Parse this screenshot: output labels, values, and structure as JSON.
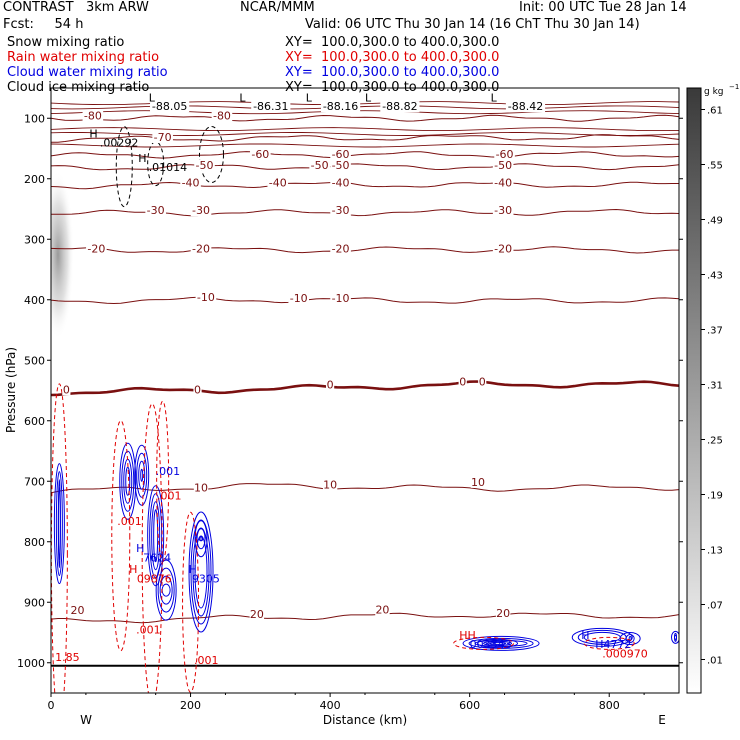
{
  "header": {
    "model": "CONTRAST   3km ARW",
    "center": "NCAR/MMM",
    "init": "Init: 00 UTC Tue 28 Jan 14",
    "fcst": "Fcst:     54 h",
    "valid": "Valid: 06 UTC Thu 30 Jan 14 (16 ChT Thu 30 Jan 14)"
  },
  "fields": [
    {
      "name": "Snow mixing ratio",
      "xsec": "XY=  100.0,300.0 to 400.0,300.0",
      "color": "#000000"
    },
    {
      "name": "Rain water mixing ratio",
      "xsec": "XY=  100.0,300.0 to 400.0,300.0",
      "color": "#e00000"
    },
    {
      "name": "Cloud water mixing ratio",
      "xsec": "XY=  100.0,300.0 to 400.0,300.0",
      "color": "#0000e0"
    },
    {
      "name": "Cloud ice mixing ratio",
      "xsec": "XY=  100.0,300.0 to 400.0,300.0",
      "color": "#000000"
    }
  ],
  "colors": {
    "temperature": "#7a1010",
    "rain": "#e00000",
    "cloud_water": "#0000e0",
    "terrain": "#000000"
  },
  "chart_data": {
    "type": "contour",
    "xlabel": "Distance (km)",
    "ylabel": "Pressure (hPa)",
    "xlim": [
      0,
      900
    ],
    "ylim": [
      1050,
      50
    ],
    "x_ticks": [
      0,
      200,
      400,
      600,
      800
    ],
    "y_ticks": [
      100,
      200,
      300,
      400,
      500,
      600,
      700,
      800,
      900,
      1000
    ],
    "direction_labels": [
      "W",
      "E"
    ],
    "colorbar": {
      "unit": "g kg",
      "unit_exp": "−1",
      "ticks": [
        ".01",
        ".07",
        ".13",
        ".19",
        ".25",
        ".31",
        ".37",
        ".43",
        ".49",
        ".55",
        ".61"
      ]
    },
    "temperature_contours": [
      {
        "label": "-80",
        "pressure": [
          100,
          100,
          100,
          100
        ]
      },
      {
        "label": "-70",
        "pressure": [
          135,
          133,
          132,
          131
        ]
      },
      {
        "label": "-60",
        "pressure": [
          162,
          160,
          160,
          160
        ]
      },
      {
        "label": "-50",
        "pressure": [
          182,
          180,
          180,
          180
        ]
      },
      {
        "label": "-40",
        "pressure": [
          212,
          210,
          210,
          210
        ]
      },
      {
        "label": "-30",
        "pressure": [
          257,
          256,
          256,
          255
        ]
      },
      {
        "label": "-20",
        "pressure": [
          318,
          318,
          317,
          318
        ]
      },
      {
        "label": "-10",
        "pressure": [
          402,
          400,
          402,
          401
        ]
      },
      {
        "label": "0",
        "pressure": [
          553,
          548,
          540,
          540
        ]
      },
      {
        "label": "10",
        "pressure": [
          717,
          707,
          712,
          710
        ]
      },
      {
        "label": "20",
        "pressure": [
          932,
          925,
          921,
          923
        ]
      }
    ],
    "contour_labels": [
      {
        "text": "-88.05",
        "x": 170,
        "p": 85
      },
      {
        "text": "-86.31",
        "x": 315,
        "p": 85
      },
      {
        "text": "-88.16",
        "x": 415,
        "p": 85
      },
      {
        "text": "-88.82",
        "x": 500,
        "p": 85
      },
      {
        "text": "-88.42",
        "x": 680,
        "p": 85
      },
      {
        "text": "-80",
        "x": 60,
        "p": 100
      },
      {
        "text": "-80",
        "x": 245,
        "p": 100
      },
      {
        "text": "-70",
        "x": 160,
        "p": 136
      },
      {
        "text": "-60",
        "x": 300,
        "p": 164
      },
      {
        "text": "-60",
        "x": 415,
        "p": 164
      },
      {
        "text": "-60",
        "x": 650,
        "p": 164
      },
      {
        "text": "-50",
        "x": 220,
        "p": 182
      },
      {
        "text": "-50",
        "x": 385,
        "p": 182
      },
      {
        "text": "-50",
        "x": 415,
        "p": 182
      },
      {
        "text": "-50",
        "x": 648,
        "p": 182
      },
      {
        "text": "-40",
        "x": 200,
        "p": 211
      },
      {
        "text": "-40",
        "x": 325,
        "p": 211
      },
      {
        "text": "-40",
        "x": 415,
        "p": 211
      },
      {
        "text": "-40",
        "x": 648,
        "p": 211
      },
      {
        "text": "-30",
        "x": 150,
        "p": 257
      },
      {
        "text": "-30",
        "x": 215,
        "p": 257
      },
      {
        "text": "-30",
        "x": 415,
        "p": 257
      },
      {
        "text": "-30",
        "x": 648,
        "p": 257
      },
      {
        "text": "-20",
        "x": 65,
        "p": 320
      },
      {
        "text": "-20",
        "x": 215,
        "p": 320
      },
      {
        "text": "-20",
        "x": 415,
        "p": 320
      },
      {
        "text": "-20",
        "x": 648,
        "p": 320
      },
      {
        "text": "-10",
        "x": 222,
        "p": 400
      },
      {
        "text": "-10",
        "x": 355,
        "p": 402
      },
      {
        "text": "-10",
        "x": 415,
        "p": 402
      },
      {
        "text": "0",
        "x": 22,
        "p": 553
      },
      {
        "text": "0",
        "x": 210,
        "p": 553
      },
      {
        "text": "0",
        "x": 400,
        "p": 545
      },
      {
        "text": "0",
        "x": 590,
        "p": 540
      },
      {
        "text": "0",
        "x": 618,
        "p": 540
      },
      {
        "text": "10",
        "x": 215,
        "p": 715
      },
      {
        "text": "10",
        "x": 400,
        "p": 710
      },
      {
        "text": "10",
        "x": 612,
        "p": 706
      },
      {
        "text": "20",
        "x": 38,
        "p": 918
      },
      {
        "text": "20",
        "x": 295,
        "p": 924
      },
      {
        "text": "20",
        "x": 475,
        "p": 917
      },
      {
        "text": "20",
        "x": 648,
        "p": 923
      }
    ],
    "extrema_labels": [
      {
        "text": "L",
        "x": 140,
        "p": 72,
        "color": "#000000"
      },
      {
        "text": "L",
        "x": 270,
        "p": 72,
        "color": "#000000"
      },
      {
        "text": "L",
        "x": 365,
        "p": 72,
        "color": "#000000"
      },
      {
        "text": "L",
        "x": 450,
        "p": 72,
        "color": "#000000"
      },
      {
        "text": "L",
        "x": 630,
        "p": 72,
        "color": "#000000"
      },
      {
        "text": "H",
        "x": 55,
        "p": 132,
        "color": "#000000"
      },
      {
        "text": ".00292",
        "x": 70,
        "p": 147,
        "color": "#000000"
      },
      {
        "text": "H",
        "x": 125,
        "p": 172,
        "color": "#000000"
      },
      {
        "text": ".01014",
        "x": 140,
        "p": 187,
        "color": "#000000"
      },
      {
        "text": ".001",
        "x": 150,
        "p": 690,
        "color": "#0000e0"
      },
      {
        "text": ".001",
        "x": 152,
        "p": 730,
        "color": "#e00000"
      },
      {
        "text": ".001",
        "x": 95,
        "p": 772,
        "color": "#e00000"
      },
      {
        "text": "H",
        "x": 122,
        "p": 817,
        "color": "#0000e0"
      },
      {
        "text": "7624",
        "x": 132,
        "p": 833,
        "color": "#0000e0"
      },
      {
        "text": "H",
        "x": 112,
        "p": 852,
        "color": "#e00000"
      },
      {
        "text": "09876",
        "x": 123,
        "p": 867,
        "color": "#e00000"
      },
      {
        "text": "H",
        "x": 197,
        "p": 852,
        "color": "#0000e0"
      },
      {
        "text": "9305",
        "x": 202,
        "p": 867,
        "color": "#0000e0"
      },
      {
        "text": ".001",
        "x": 122,
        "p": 952,
        "color": "#e00000"
      },
      {
        "text": "1.85",
        "x": 6,
        "p": 997,
        "color": "#e00000"
      },
      {
        "text": ".001",
        "x": 205,
        "p": 1002,
        "color": "#e00000"
      },
      {
        "text": "HH",
        "x": 585,
        "p": 961,
        "color": "#e00000"
      },
      {
        "text": "003343",
        "x": 600,
        "p": 976,
        "color": "#0000e0"
      },
      {
        "text": "H",
        "x": 760,
        "p": 961,
        "color": "#0000e0"
      },
      {
        "text": "H4772",
        "x": 780,
        "p": 976,
        "color": "#0000e0"
      },
      {
        "text": ".000970",
        "x": 790,
        "p": 991,
        "color": "#e00000"
      }
    ]
  }
}
